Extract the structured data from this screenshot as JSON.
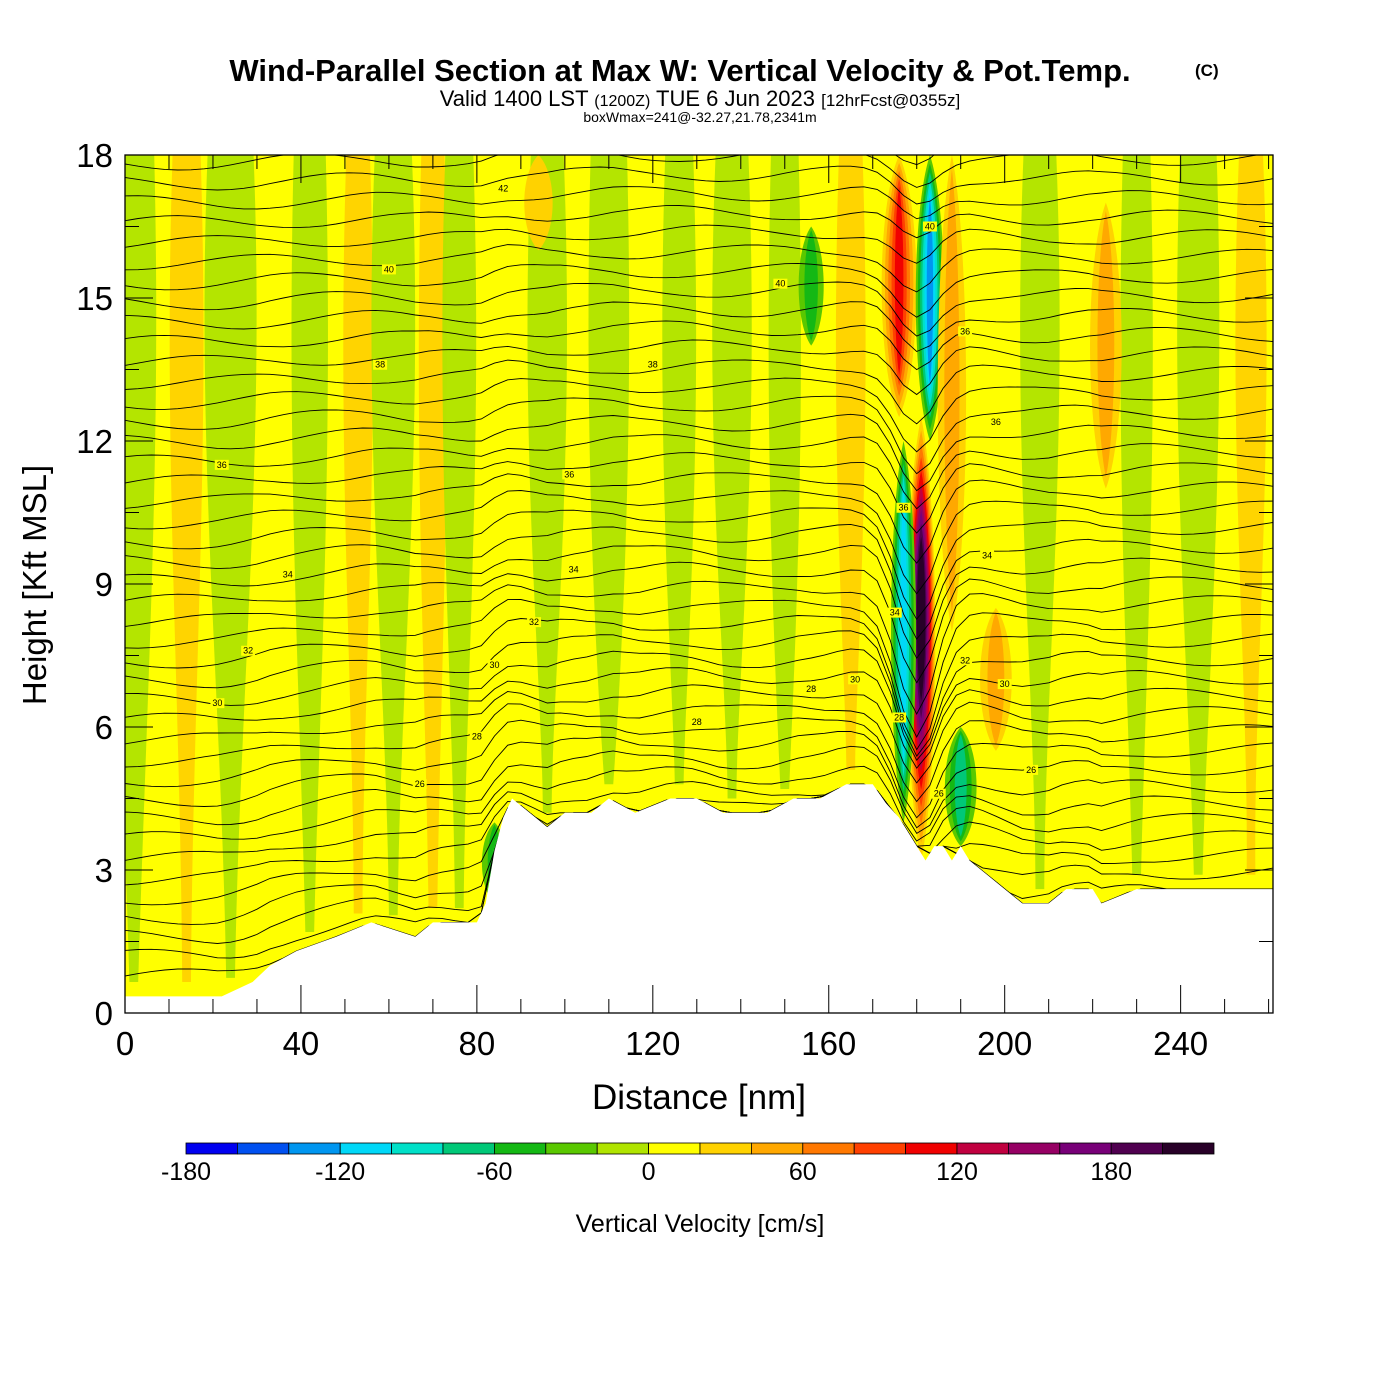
{
  "title": {
    "main": "Wind-Parallel Section at Max W: Vertical Velocity & Pot.Temp.",
    "copyright": "(C)",
    "valid_prefix": "Valid 1400 LST",
    "valid_utc": "(1200Z)",
    "valid_date": "TUE 6 Jun 2023",
    "forecast": "[12hrFcst@0355z]",
    "boxmax": "boxWmax=241@-32.27,21.78,2341m"
  },
  "colors": {
    "background": "#ffffff",
    "terrain": "#ffffff",
    "contour": "#000000"
  },
  "chart_data": {
    "type": "heatmap",
    "title": "Wind-Parallel Section at Max W: Vertical Velocity & Pot.Temp.",
    "xlabel": "Distance [nm]",
    "ylabel": "Height [Kft MSL]",
    "xlim": [
      0,
      261
    ],
    "ylim": [
      0,
      18
    ],
    "x_ticks": [
      0,
      40,
      80,
      120,
      160,
      200,
      240
    ],
    "y_ticks": [
      0,
      3,
      6,
      9,
      12,
      15,
      18
    ],
    "x_tick_labels": [
      "0",
      "40",
      "80",
      "120",
      "160",
      "200",
      "240"
    ],
    "y_tick_labels": [
      "0",
      "3",
      "6",
      "9",
      "12",
      "15",
      "18"
    ],
    "colorbar": {
      "label": "Vertical Velocity [cm/s]",
      "tick_values": [
        -180,
        -120,
        -60,
        0,
        60,
        120,
        180
      ],
      "tick_labels": [
        "-180",
        "-120",
        "-60",
        "0",
        "60",
        "120",
        "180"
      ],
      "bounds": [
        -180,
        220
      ],
      "step": 20,
      "colors": [
        "#0000f0",
        "#0050f0",
        "#0096f0",
        "#00d8f8",
        "#00e0c8",
        "#00c878",
        "#14b814",
        "#5ac800",
        "#b0e400",
        "#ffff00",
        "#ffd200",
        "#ffa800",
        "#ff7800",
        "#ff4000",
        "#f00000",
        "#c00040",
        "#960064",
        "#780078",
        "#500050",
        "#280028"
      ]
    },
    "terrain_profile_x": [
      0,
      22,
      29,
      33,
      39,
      48,
      56,
      66,
      70,
      80,
      82,
      84,
      86,
      88,
      92,
      96,
      100,
      106,
      110,
      116,
      124,
      130,
      136,
      140,
      146,
      152,
      158,
      164,
      170,
      173,
      176,
      178,
      180,
      182,
      184,
      186,
      188,
      190,
      192,
      196,
      200,
      204,
      210,
      214,
      220,
      222,
      230,
      240,
      250,
      261
    ],
    "terrain_profile_height": [
      0.35,
      0.35,
      0.65,
      1.0,
      1.3,
      1.6,
      1.9,
      1.6,
      1.9,
      1.9,
      2.3,
      3.4,
      4.1,
      4.5,
      4.2,
      3.9,
      4.2,
      4.2,
      4.5,
      4.2,
      4.5,
      4.5,
      4.2,
      4.2,
      4.2,
      4.5,
      4.5,
      4.8,
      4.8,
      4.4,
      4.1,
      3.8,
      3.5,
      3.2,
      3.5,
      3.5,
      3.2,
      3.5,
      3.2,
      2.9,
      2.6,
      2.3,
      2.3,
      2.6,
      2.6,
      2.3,
      2.6,
      2.6,
      2.6,
      2.6
    ],
    "vertical_velocity_features": [
      {
        "kind": "updraft",
        "x": 181,
        "height_min": 3.2,
        "height_max": 12.5,
        "peak_value": 241,
        "width_nm": 4
      },
      {
        "kind": "updraft",
        "x": 176,
        "height_min": 12.5,
        "height_max": 18,
        "peak_value": 110,
        "width_nm": 6
      },
      {
        "kind": "downdraft",
        "x": 177,
        "height_min": 4.0,
        "height_max": 12.0,
        "peak_value": -110,
        "width_nm": 3
      },
      {
        "kind": "downdraft",
        "x": 183,
        "height_min": 12.0,
        "height_max": 18,
        "peak_value": -120,
        "width_nm": 4
      },
      {
        "kind": "updraft",
        "x": 188,
        "height_min": 8.0,
        "height_max": 18,
        "peak_value": 40,
        "width_nm": 4
      },
      {
        "kind": "updraft",
        "x": 198,
        "height_min": 5.5,
        "height_max": 8.5,
        "peak_value": 40,
        "width_nm": 5
      },
      {
        "kind": "updraft",
        "x": 223,
        "height_min": 11.0,
        "height_max": 17,
        "peak_value": 40,
        "width_nm": 5
      },
      {
        "kind": "updraft",
        "x": 94,
        "height_min": 16.0,
        "height_max": 18,
        "peak_value": 30,
        "width_nm": 4
      },
      {
        "kind": "downdraft",
        "x": 84,
        "height_min": 2.3,
        "height_max": 4.0,
        "peak_value": -50,
        "width_nm": 3
      },
      {
        "kind": "downdraft",
        "x": 190,
        "height_min": 3.5,
        "height_max": 6.0,
        "peak_value": -60,
        "width_nm": 5
      },
      {
        "kind": "downdraft",
        "x": 156,
        "height_min": 14.0,
        "height_max": 16.5,
        "peak_value": -40,
        "width_nm": 3
      }
    ],
    "potential_temperature_contours": {
      "units": "C",
      "interval": 1,
      "labels": [
        {
          "x": 86,
          "height": 17.3,
          "text": "42"
        },
        {
          "x": 60,
          "height": 15.6,
          "text": "40"
        },
        {
          "x": 149,
          "height": 15.3,
          "text": "40"
        },
        {
          "x": 183,
          "height": 16.5,
          "text": "40"
        },
        {
          "x": 58,
          "height": 13.6,
          "text": "38"
        },
        {
          "x": 120,
          "height": 13.6,
          "text": "38"
        },
        {
          "x": 191,
          "height": 14.3,
          "text": "36"
        },
        {
          "x": 22,
          "height": 11.5,
          "text": "36"
        },
        {
          "x": 101,
          "height": 11.3,
          "text": "36"
        },
        {
          "x": 177,
          "height": 10.6,
          "text": "36"
        },
        {
          "x": 198,
          "height": 12.4,
          "text": "36"
        },
        {
          "x": 37,
          "height": 9.2,
          "text": "34"
        },
        {
          "x": 102,
          "height": 9.3,
          "text": "34"
        },
        {
          "x": 175,
          "height": 8.4,
          "text": "34"
        },
        {
          "x": 196,
          "height": 9.6,
          "text": "34"
        },
        {
          "x": 28,
          "height": 7.6,
          "text": "32"
        },
        {
          "x": 93,
          "height": 8.2,
          "text": "32"
        },
        {
          "x": 191,
          "height": 7.4,
          "text": "32"
        },
        {
          "x": 21,
          "height": 6.5,
          "text": "30"
        },
        {
          "x": 84,
          "height": 7.3,
          "text": "30"
        },
        {
          "x": 166,
          "height": 7.0,
          "text": "30"
        },
        {
          "x": 200,
          "height": 6.9,
          "text": "30"
        },
        {
          "x": 80,
          "height": 5.8,
          "text": "28"
        },
        {
          "x": 130,
          "height": 6.1,
          "text": "28"
        },
        {
          "x": 156,
          "height": 6.8,
          "text": "28"
        },
        {
          "x": 176,
          "height": 6.2,
          "text": "28"
        },
        {
          "x": 67,
          "height": 4.8,
          "text": "26"
        },
        {
          "x": 206,
          "height": 5.1,
          "text": "26"
        },
        {
          "x": 185,
          "height": 4.6,
          "text": "26"
        }
      ]
    }
  }
}
